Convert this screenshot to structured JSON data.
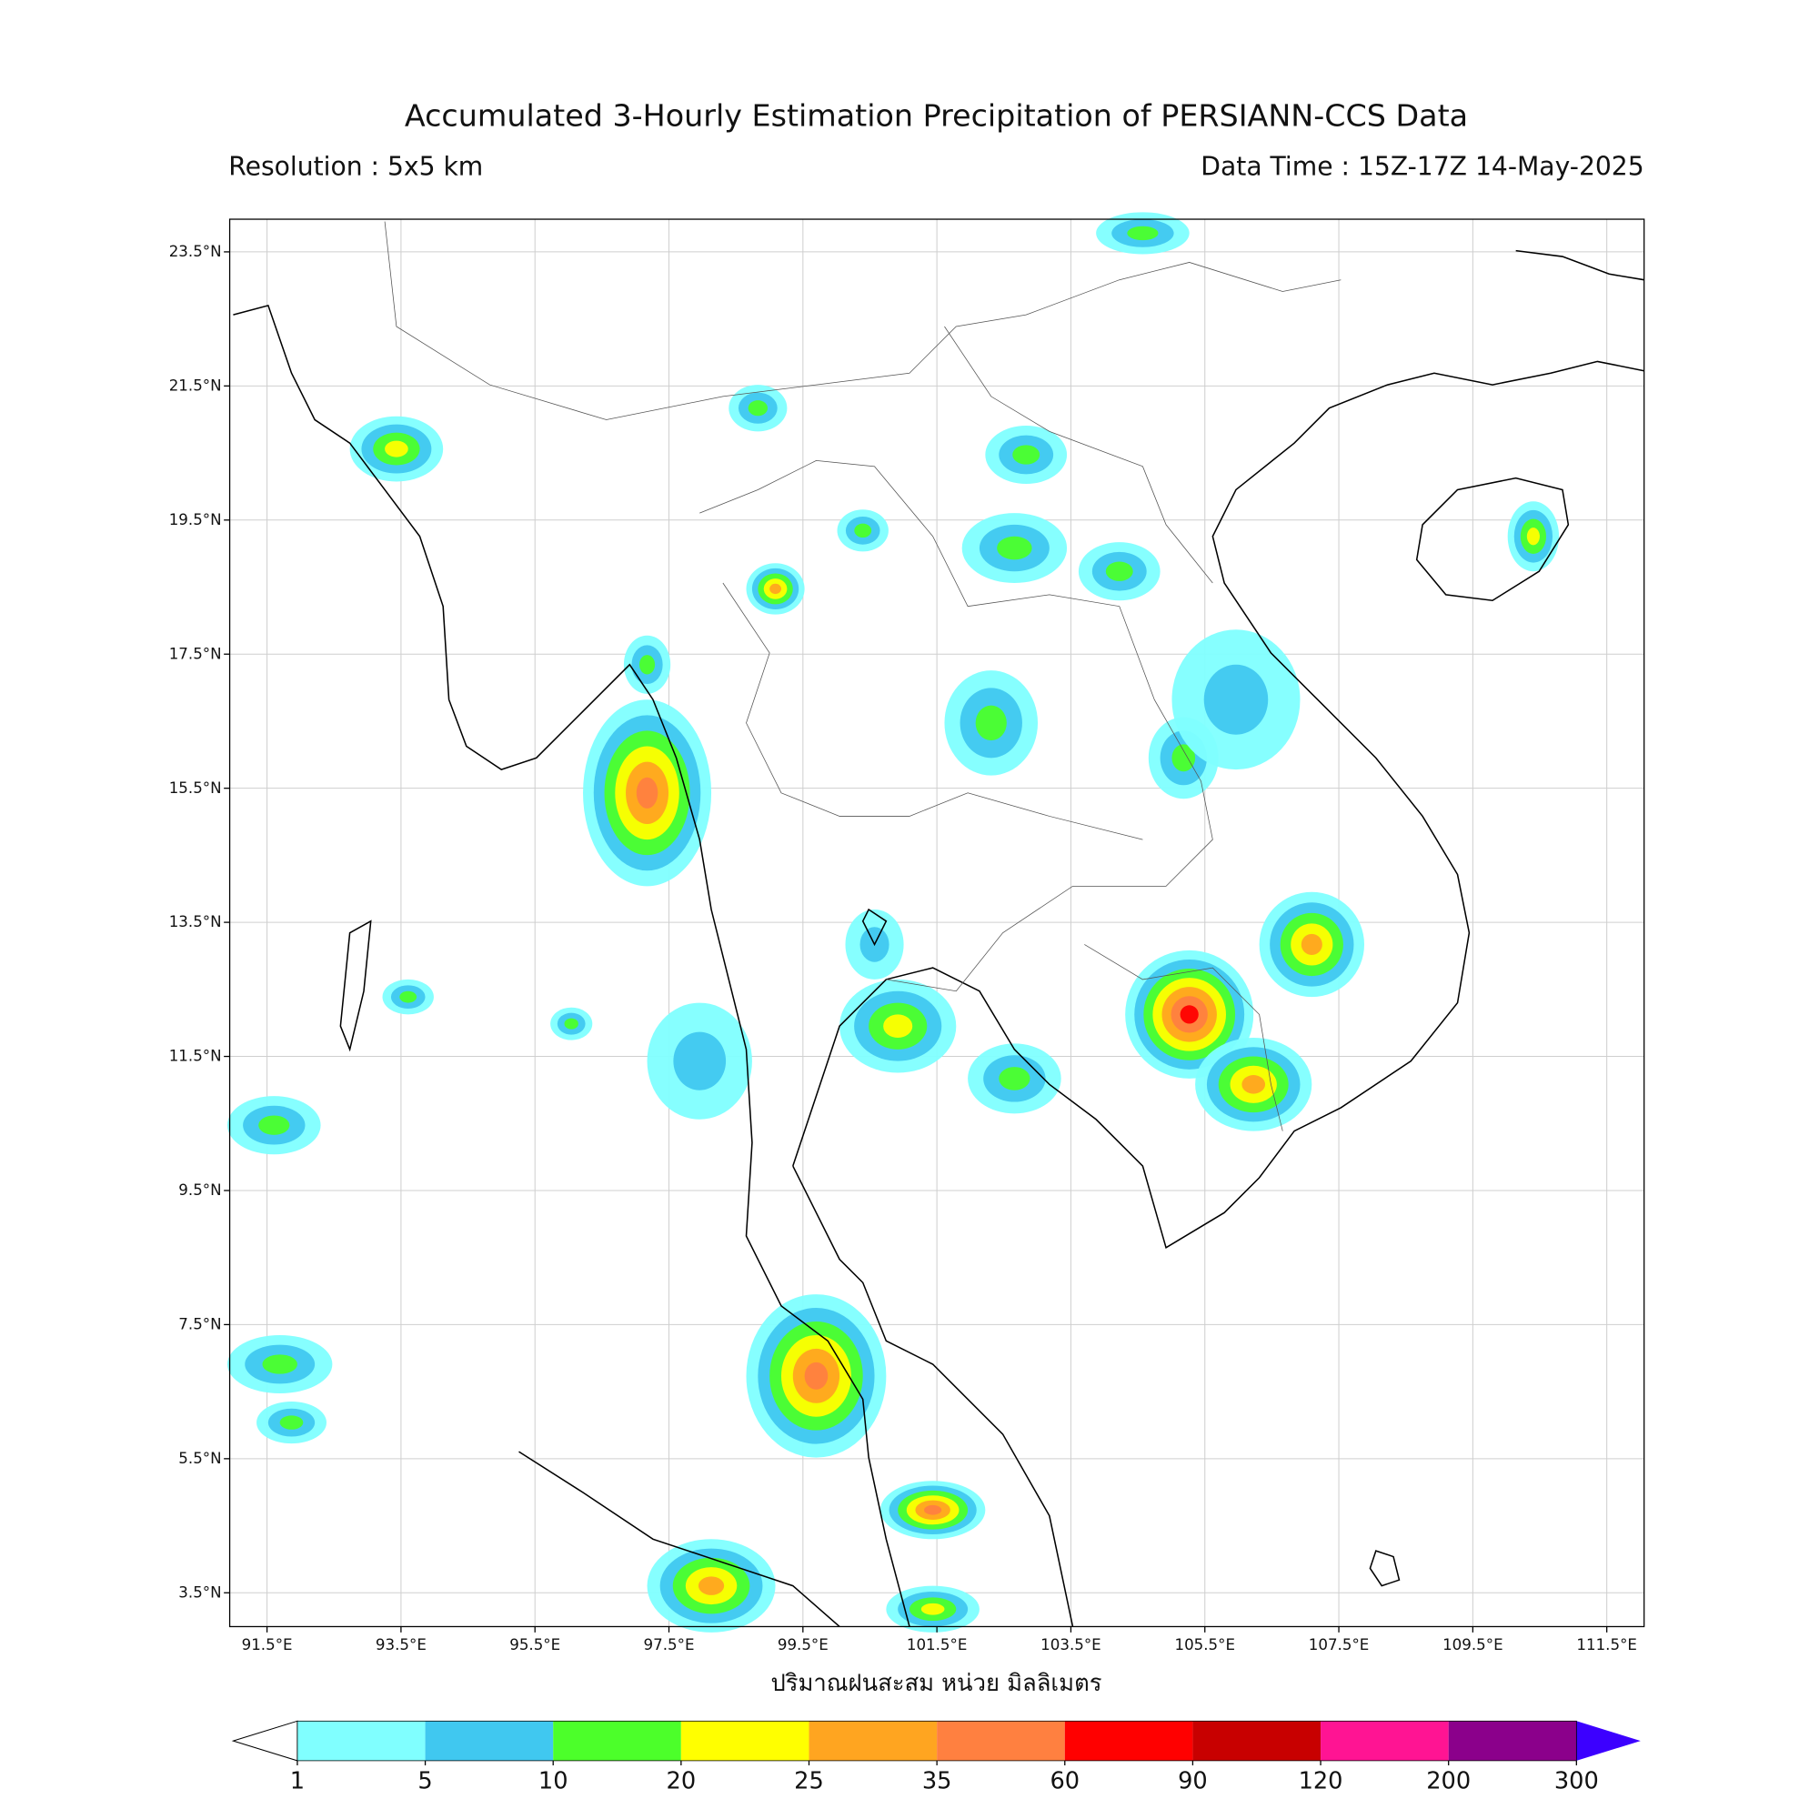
{
  "header": {
    "title": "Accumulated 3-Hourly Estimation Precipitation of PERSIANN-CCS Data",
    "resolution": "Resolution : 5x5 km",
    "data_time": "Data Time : 15Z-17Z 14-May-2025"
  },
  "map": {
    "latticks": [
      {
        "value": 23.5,
        "label": "23.5°N"
      },
      {
        "value": 21.5,
        "label": "21.5°N"
      },
      {
        "value": 19.5,
        "label": "19.5°N"
      },
      {
        "value": 17.5,
        "label": "17.5°N"
      },
      {
        "value": 15.5,
        "label": "15.5°N"
      },
      {
        "value": 13.5,
        "label": "13.5°N"
      },
      {
        "value": 11.5,
        "label": "11.5°N"
      },
      {
        "value": 9.5,
        "label": "9.5°N"
      },
      {
        "value": 7.5,
        "label": "7.5°N"
      },
      {
        "value": 5.5,
        "label": "5.5°N"
      },
      {
        "value": 3.5,
        "label": "3.5°N"
      }
    ],
    "lonticks": [
      {
        "value": 91.5,
        "label": "91.5°E"
      },
      {
        "value": 93.5,
        "label": "93.5°E"
      },
      {
        "value": 95.5,
        "label": "95.5°E"
      },
      {
        "value": 97.5,
        "label": "97.5°E"
      },
      {
        "value": 99.5,
        "label": "99.5°E"
      },
      {
        "value": 101.5,
        "label": "101.5°E"
      },
      {
        "value": 103.5,
        "label": "103.5°E"
      },
      {
        "value": 105.5,
        "label": "105.5°E"
      },
      {
        "value": 107.5,
        "label": "107.5°E"
      },
      {
        "value": 109.5,
        "label": "109.5°E"
      },
      {
        "value": 111.5,
        "label": "111.5°E"
      }
    ],
    "xlabel": "ปริมาณฝนสะสม หน่วย มิลลิเมตร"
  },
  "colorbar": {
    "levels": [
      1,
      5,
      10,
      20,
      25,
      35,
      60,
      90,
      120,
      200,
      300
    ],
    "colors": [
      "#80ffff",
      "#40c8f0",
      "#4cff2a",
      "#ffff00",
      "#ffa520",
      "#ff8040",
      "#ff0000",
      "#c80000",
      "#ff1493",
      "#8b008b"
    ],
    "under_color": "#ffffff",
    "over_color": "#3c00ff"
  }
}
